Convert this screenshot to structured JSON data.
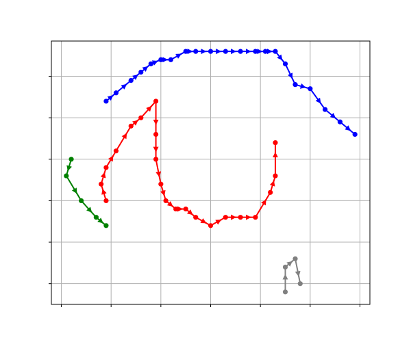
{
  "chart_data": {
    "type": "line",
    "title": "",
    "xlabel": "",
    "ylabel": "",
    "xlim": [
      -0.2,
      6.2
    ],
    "ylim": [
      -0.5,
      5.85
    ],
    "xticks": [
      0,
      1,
      2,
      3,
      4,
      5,
      6
    ],
    "yticks": [
      0,
      1,
      2,
      3,
      4,
      5
    ],
    "tick_labels_visible": false,
    "grid": true,
    "markers": "circle",
    "arrows": true,
    "series": [
      {
        "color": "#0000ff",
        "points": [
          [
            0.9,
            4.4
          ],
          [
            1.1,
            4.6
          ],
          [
            1.4,
            4.9
          ],
          [
            1.6,
            5.1
          ],
          [
            1.8,
            5.3
          ],
          [
            2.0,
            5.4
          ],
          [
            2.2,
            5.4
          ],
          [
            2.5,
            5.6
          ],
          [
            2.7,
            5.6
          ],
          [
            3.0,
            5.6
          ],
          [
            3.3,
            5.6
          ],
          [
            3.6,
            5.6
          ],
          [
            3.9,
            5.6
          ],
          [
            4.1,
            5.6
          ],
          [
            4.3,
            5.6
          ],
          [
            4.5,
            5.3
          ],
          [
            4.7,
            4.8
          ],
          [
            5.0,
            4.7
          ],
          [
            5.3,
            4.2
          ],
          [
            5.6,
            3.9
          ],
          [
            5.9,
            3.6
          ]
        ]
      },
      {
        "color": "#ff0000",
        "points": [
          [
            0.9,
            2.0
          ],
          [
            0.8,
            2.4
          ],
          [
            0.9,
            2.8
          ],
          [
            1.1,
            3.2
          ],
          [
            1.4,
            3.8
          ],
          [
            1.6,
            4.0
          ],
          [
            1.9,
            4.4
          ],
          [
            1.9,
            3.6
          ],
          [
            1.9,
            3.0
          ],
          [
            2.0,
            2.4
          ],
          [
            2.1,
            2.0
          ],
          [
            2.3,
            1.8
          ],
          [
            2.5,
            1.8
          ],
          [
            2.7,
            1.6
          ],
          [
            3.0,
            1.4
          ],
          [
            3.3,
            1.6
          ],
          [
            3.6,
            1.6
          ],
          [
            3.9,
            1.6
          ],
          [
            4.2,
            2.2
          ],
          [
            4.3,
            2.6
          ],
          [
            4.3,
            3.4
          ]
        ]
      },
      {
        "color": "#008000",
        "points": [
          [
            0.2,
            3.0
          ],
          [
            0.1,
            2.6
          ],
          [
            0.4,
            2.0
          ],
          [
            0.7,
            1.6
          ],
          [
            0.9,
            1.4
          ]
        ]
      },
      {
        "color": "#808080",
        "points": [
          [
            4.5,
            -0.2
          ],
          [
            4.5,
            0.4
          ],
          [
            4.7,
            0.6
          ],
          [
            4.8,
            0.0
          ]
        ]
      }
    ]
  }
}
